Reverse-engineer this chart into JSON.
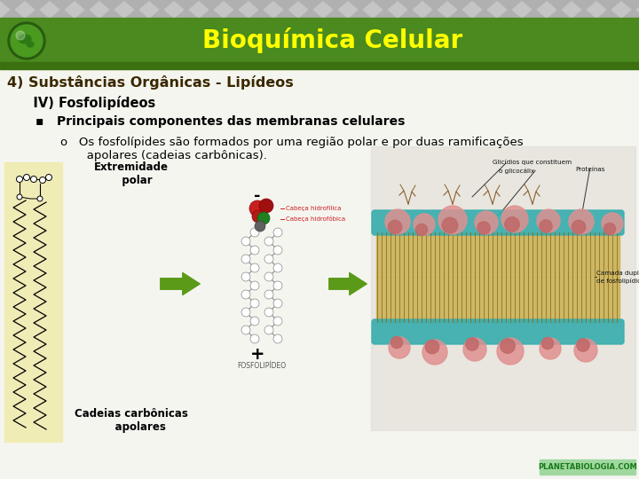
{
  "title": "Bioquímica Celular",
  "title_color": "#FFFF00",
  "header_bg": "#4a8c20",
  "header_stripe_color": "#c8c8c8",
  "body_bg": "#f0f0f0",
  "line1": "4) Substâncias Orgânicas - Lipídeos",
  "line1_color": "#3a2800",
  "line1_fontsize": 11.5,
  "line2": "   IV) Fosfolipídeos",
  "line2_color": "#000000",
  "line2_fontsize": 10.5,
  "line3": "▪   Principais componentes das membranas celulares",
  "line3_color": "#000000",
  "line3_fontsize": 10,
  "line4a": "o   Os fosfolípides são formados por uma região polar e por duas ramificações",
  "line4b": "       apolares (cadeias carbônicas).",
  "line4_color": "#000000",
  "line4_fontsize": 9.5,
  "label_extremidade": "Extremidade\n   polar",
  "label_cadeias": "Cadeias carbônicas\n     apolares",
  "label_minus": "-",
  "label_plus": "+",
  "watermark": "PLANETABIOLOGIA.COM",
  "watermark_color": "#1a7a1a",
  "watermark_bg": "#a0d8a0",
  "fig_width": 7.2,
  "fig_height": 5.4,
  "dpi": 100
}
